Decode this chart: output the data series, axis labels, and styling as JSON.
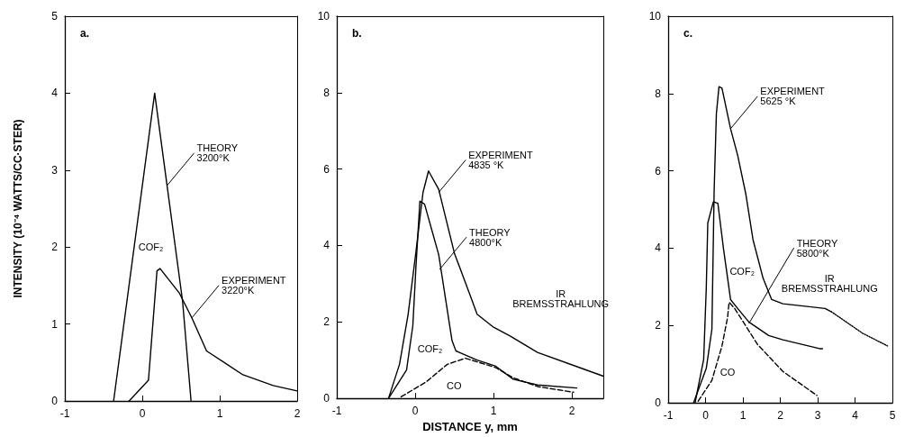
{
  "chart_data": [
    {
      "type": "line",
      "title": "a.",
      "ylabel": "INTENSITY (10⁻⁴ WATTS/CC·STER)",
      "xlim": [
        -1,
        2
      ],
      "xticks": [
        -1,
        0,
        1,
        2
      ],
      "ylim": [
        0,
        5
      ],
      "yticks": [
        0,
        1,
        2,
        3,
        4,
        5
      ],
      "marker": "none",
      "series": [
        {
          "color": "#000000",
          "line_style": "solid",
          "x": [
            -0.37,
            0.16,
            0.32,
            0.52,
            0.63
          ],
          "values": [
            0,
            4.0,
            2.8,
            1.3,
            0
          ]
        },
        {
          "color": "#000000",
          "line_style": "solid",
          "x": [
            -0.17,
            0.08,
            0.19,
            0.23,
            0.48,
            0.64,
            0.83,
            1.3,
            1.69,
            2.0
          ],
          "values": [
            0,
            0.27,
            1.69,
            1.72,
            1.4,
            1.08,
            0.65,
            0.34,
            0.2,
            0.13
          ]
        }
      ],
      "annotations": [
        {
          "text": "THEORY\n3200°K",
          "x": 0.32,
          "y": 2.8
        },
        {
          "text": "EXPERIMENT\n3220°K",
          "x": 0.64,
          "y": 1.08
        },
        "COF₂"
      ]
    },
    {
      "type": "line",
      "title": "b.",
      "xlabel": "DISTANCE y, mm",
      "xlim": [
        -1,
        2.4
      ],
      "xticks": [
        -1,
        0,
        1,
        2
      ],
      "ylim": [
        0,
        10
      ],
      "yticks": [
        0,
        2,
        4,
        6,
        8,
        10
      ],
      "marker": "none",
      "series": [
        {
          "color": "#000000",
          "line_style": "solid",
          "x": [
            -0.34,
            -0.2,
            -0.09,
            0.01,
            0.1,
            0.17,
            0.3,
            0.5,
            0.7,
            0.79,
            1.0,
            1.21,
            1.56,
            2.13,
            2.4
          ],
          "values": [
            0,
            0.89,
            2.2,
            3.84,
            5.39,
            5.95,
            5.47,
            3.8,
            2.7,
            2.2,
            1.86,
            1.63,
            1.2,
            0.78,
            0.58
          ]
        },
        {
          "color": "#000000",
          "line_style": "solid",
          "x": [
            -0.34,
            -0.11,
            -0.03,
            0.01,
            0.06,
            0.12,
            0.3,
            0.47,
            0.52,
            0.79,
            1.02,
            1.25,
            1.56,
            2.06
          ],
          "values": [
            0,
            0.74,
            1.9,
            3.45,
            5.16,
            5.08,
            3.76,
            1.51,
            1.24,
            1.0,
            0.85,
            0.5,
            0.35,
            0.27
          ]
        },
        {
          "color": "#000000",
          "line_style": "dashed",
          "x": [
            -0.18,
            0.14,
            0.41,
            0.64,
            1.02,
            1.25,
            1.56,
            2.02
          ],
          "values": [
            0.04,
            0.43,
            0.89,
            1.05,
            0.81,
            0.54,
            0.31,
            0.16
          ]
        }
      ],
      "annotations": [
        {
          "text": "EXPERIMENT\n4835 °K",
          "x": 0.3,
          "y": 5.39
        },
        {
          "text": "THEORY\n4800°K",
          "x": 0.31,
          "y": 3.37
        },
        "IR\nBREMSSTRAHLUNG",
        "COF₂",
        "CO"
      ]
    },
    {
      "type": "line",
      "title": "c.",
      "xlim": [
        -1,
        5
      ],
      "xticks": [
        -1,
        0,
        1,
        2,
        3,
        4,
        5
      ],
      "ylim": [
        0,
        10
      ],
      "yticks": [
        0,
        2,
        4,
        6,
        8,
        10
      ],
      "marker": "none",
      "series": [
        {
          "color": "#000000",
          "line_style": "solid",
          "x": [
            -0.32,
            0.02,
            0.17,
            0.23,
            0.29,
            0.36,
            0.44,
            0.67,
            0.86,
            1.08,
            1.27,
            1.54,
            1.77,
            2.07,
            2.45,
            3.2,
            3.36
          ],
          "values": [
            0,
            0.89,
            1.9,
            5.47,
            7.48,
            8.18,
            8.14,
            7.09,
            6.4,
            5.39,
            4.22,
            3.22,
            2.67,
            2.56,
            2.52,
            2.44,
            2.36
          ]
        },
        {
          "color": "#000000",
          "line_style": "dotted",
          "x": [
            3.36,
            4.2,
            4.87
          ],
          "values": [
            2.36,
            1.8,
            1.47
          ]
        },
        {
          "color": "#000000",
          "line_style": "solid",
          "x": [
            -0.28,
            -0.05,
            0.02,
            0.06,
            0.21,
            0.33,
            0.48,
            0.67,
            0.86,
            1.16,
            1.69,
            2.07,
            3.05,
            3.13
          ],
          "values": [
            0,
            1.12,
            2.98,
            4.65,
            5.2,
            5.16,
            3.99,
            2.67,
            2.44,
            2.09,
            1.74,
            1.63,
            1.4,
            1.4
          ]
        },
        {
          "color": "#000000",
          "line_style": "dashed",
          "x": [
            -0.2,
            0.17,
            0.44,
            0.59,
            0.63,
            0.78,
            1.39,
            2.07,
            2.98
          ],
          "values": [
            0.04,
            0.58,
            1.47,
            2.21,
            2.6,
            2.44,
            1.51,
            0.81,
            0.19
          ]
        }
      ],
      "annotations": [
        {
          "text": "EXPERIMENT\n5625 °K",
          "x": 0.67,
          "y": 7.09
        },
        {
          "text": "THEORY\n5800°K",
          "x": 1.16,
          "y": 2.05
        },
        "IR\nBREMSSTRAHLUNG",
        "COF₂",
        "CO"
      ]
    }
  ]
}
